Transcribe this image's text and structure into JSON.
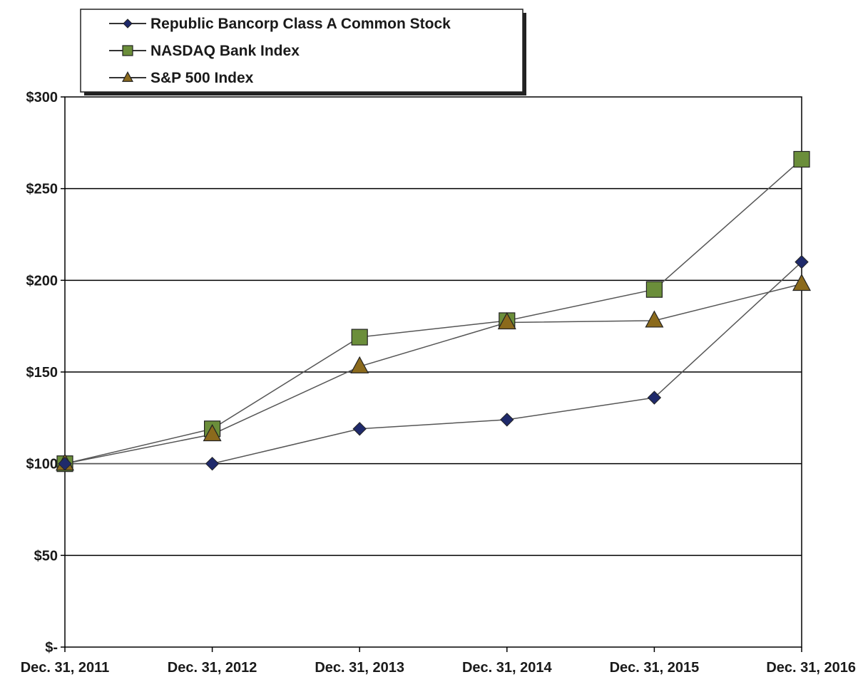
{
  "chart_data": {
    "type": "line",
    "title": "",
    "xlabel": "",
    "ylabel": "",
    "categories": [
      "Dec. 31, 2011",
      "Dec. 31, 2012",
      "Dec. 31, 2013",
      "Dec. 31, 2014",
      "Dec. 31, 2015",
      "Dec. 31, 2016"
    ],
    "ylim": [
      0,
      300
    ],
    "yticks": [
      0,
      50,
      100,
      150,
      200,
      250,
      300
    ],
    "ytick_labels": [
      "$-",
      "$50",
      "$100",
      "$150",
      "$200",
      "$250",
      "$300"
    ],
    "grid": true,
    "legend_position": "top-left",
    "series": [
      {
        "name": "Republic Bancorp Class A Common Stock",
        "marker": "diamond",
        "color": "#1f2a6b",
        "values": [
          100,
          100,
          119,
          124,
          136,
          210
        ]
      },
      {
        "name": "NASDAQ Bank Index",
        "marker": "square",
        "color": "#6b8e3a",
        "values": [
          100,
          119,
          169,
          178,
          195,
          266
        ]
      },
      {
        "name": "S&P 500 Index",
        "marker": "triangle",
        "color": "#8b6a1c",
        "values": [
          100,
          116,
          153,
          177,
          178,
          198
        ]
      }
    ],
    "line_color": "#555555",
    "grid_color": "#000000"
  }
}
